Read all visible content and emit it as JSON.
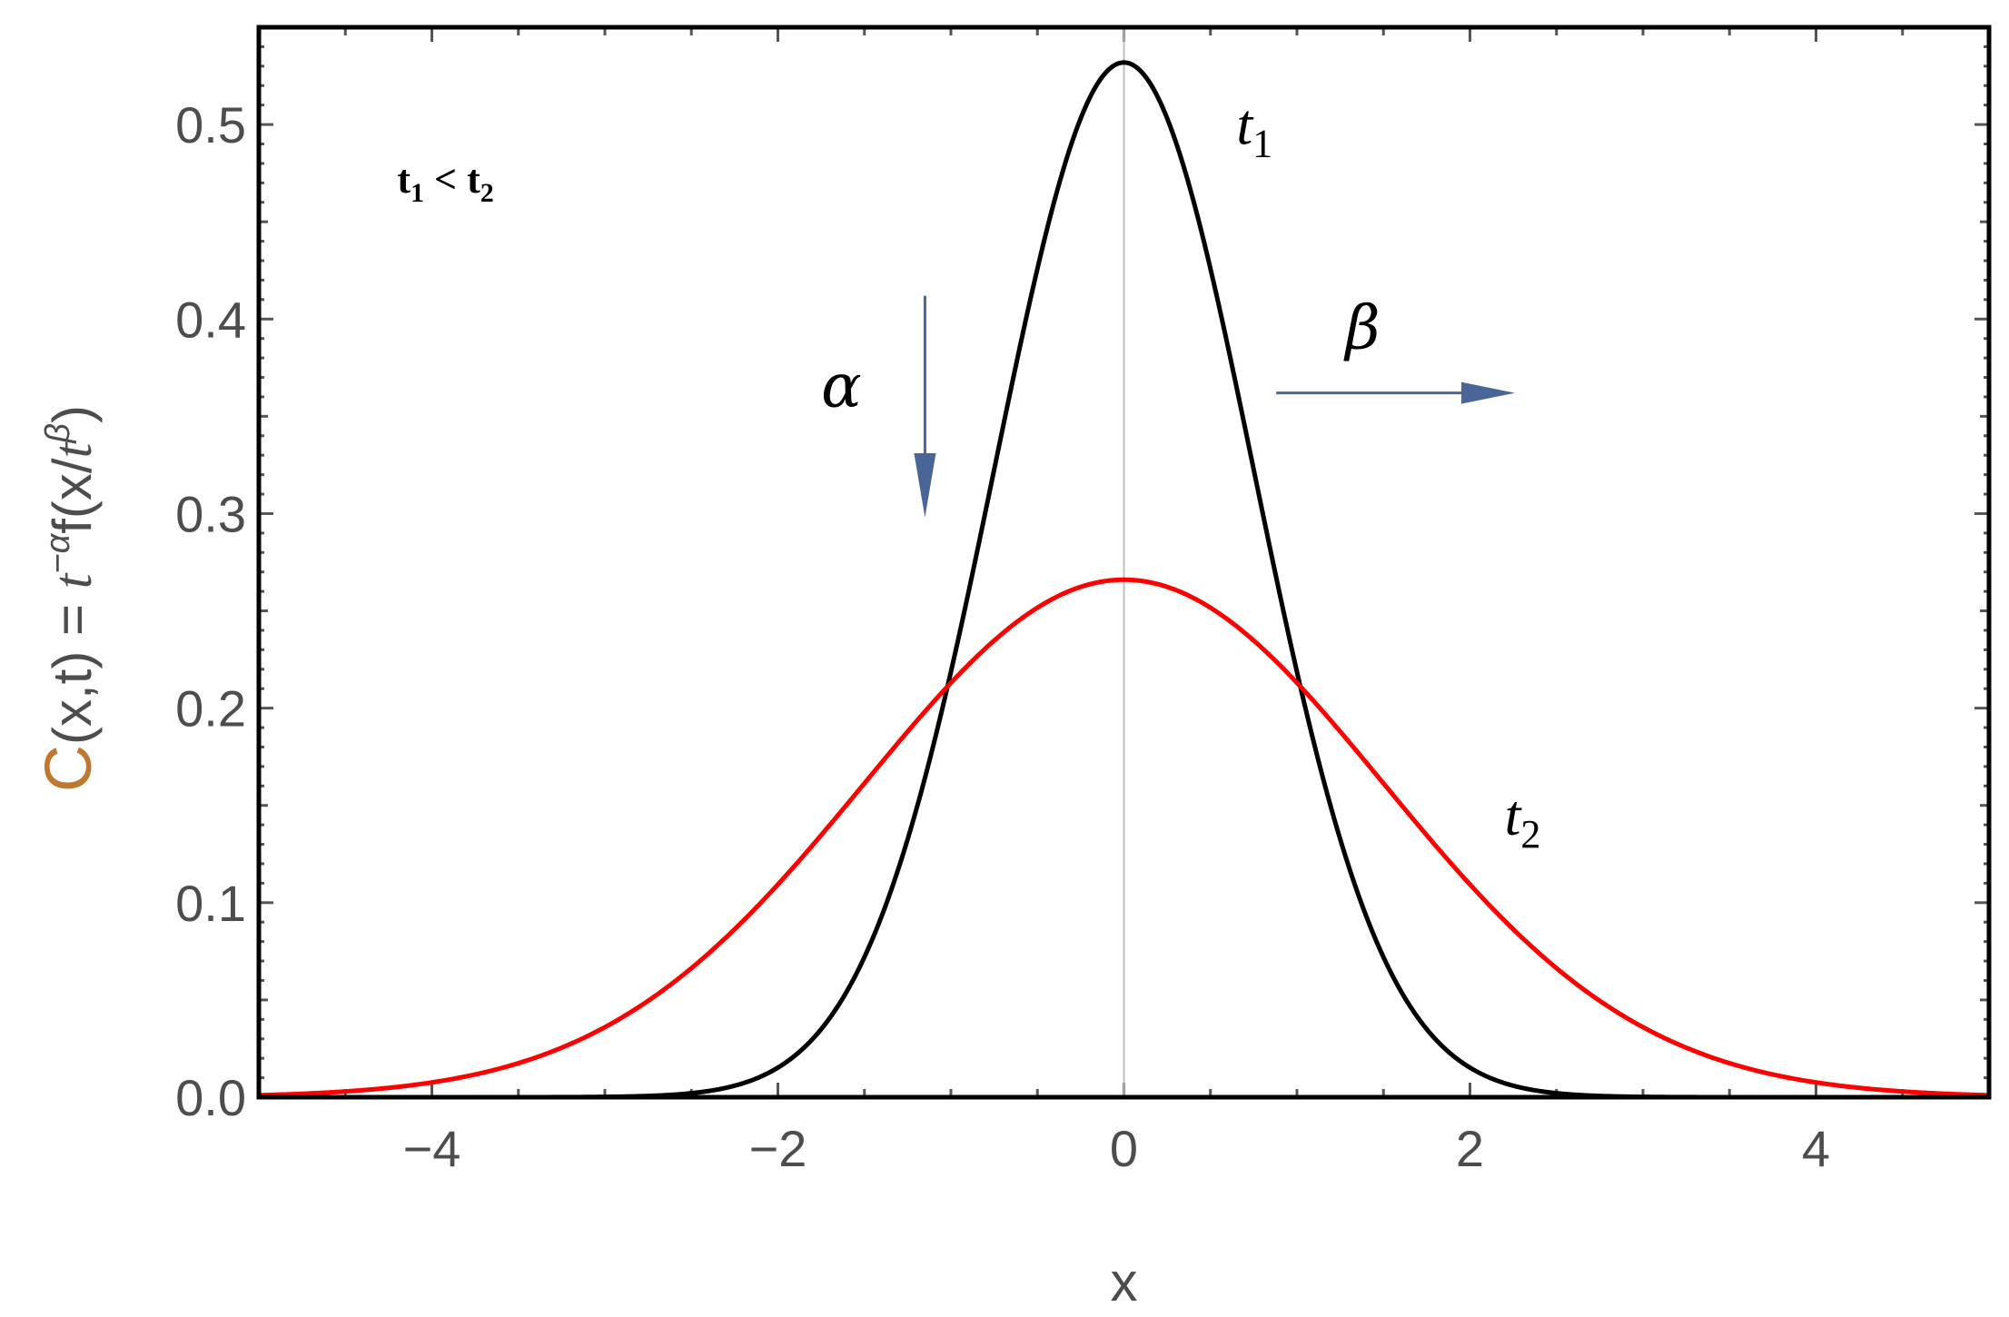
{
  "chart_data": {
    "type": "line",
    "xlabel": "x",
    "ylabel": {
      "c": "C",
      "lhs": "(x,t) = ",
      "t1": "t",
      "exp1": "−α",
      "f": "f(x/",
      "t2": "t",
      "exp2": "β",
      "close": ")"
    },
    "xlim": [
      -5,
      5
    ],
    "ylim": [
      0,
      0.55
    ],
    "xticks": [
      "−4",
      "−2",
      "0",
      "2",
      "4"
    ],
    "xtick_values": [
      -4,
      -2,
      0,
      2,
      4
    ],
    "yticks": [
      "0.0",
      "0.1",
      "0.2",
      "0.3",
      "0.4",
      "0.5"
    ],
    "ytick_values": [
      0,
      0.1,
      0.2,
      0.3,
      0.4,
      0.5
    ],
    "series": [
      {
        "name": "t1",
        "label_main": "t",
        "label_sub": "1",
        "color": "#000000",
        "function": "gaussian",
        "amplitude": 0.5319,
        "sigma": 0.75
      },
      {
        "name": "t2",
        "label_main": "t",
        "label_sub": "2",
        "color": "#ff0000",
        "function": "gaussian",
        "amplitude": 0.266,
        "sigma": 1.5
      }
    ],
    "annotations": {
      "alpha": "α",
      "beta": "β",
      "condition": {
        "a": "t",
        "a_sub": "1",
        "op": " < ",
        "b": "t",
        "b_sub": "2"
      },
      "arrow_color": "#4a6699"
    },
    "grid": false
  }
}
